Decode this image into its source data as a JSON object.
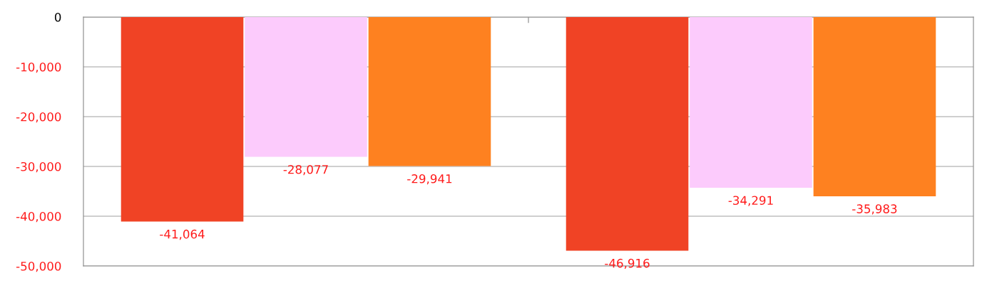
{
  "chart_data": {
    "type": "bar",
    "categories": [
      null,
      null
    ],
    "series": [
      {
        "color": "#f04325",
        "values": [
          -41064,
          -46916
        ],
        "value_labels": [
          "-41,064",
          "-46,916"
        ]
      },
      {
        "color": "#fccbfc",
        "values": [
          -28077,
          -34291
        ],
        "value_labels": [
          "-28,077",
          "-34,291"
        ]
      },
      {
        "color": "#fe8120",
        "values": [
          -29941,
          -35983
        ],
        "value_labels": [
          "-29,941",
          "-35,983"
        ]
      }
    ],
    "ylim": [
      -50000,
      0
    ],
    "yticks": [
      {
        "value": -50000,
        "label": "-50,000"
      },
      {
        "value": -40000,
        "label": "-40,000"
      },
      {
        "value": -30000,
        "label": "-30,000"
      },
      {
        "value": -20000,
        "label": "-20,000"
      },
      {
        "value": -10000,
        "label": "-10,000"
      },
      0
    ],
    "grid": "y",
    "legend": false
  }
}
